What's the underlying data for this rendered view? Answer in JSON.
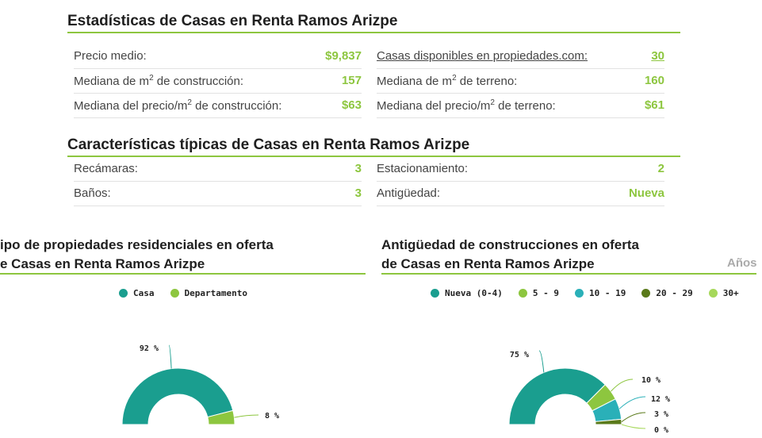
{
  "stats": {
    "title": "Estadísticas de Casas en Renta Ramos Arizpe",
    "left": [
      {
        "label_html": "Precio medio:",
        "value": "$9,837"
      },
      {
        "label_html": "Mediana de m<sup>2</sup> de construcción:",
        "value": "157"
      },
      {
        "label_html": "Mediana del precio/m<sup>2</sup> de construcción:",
        "value": "$63"
      }
    ],
    "right": [
      {
        "label_html": "Casas disponibles en propiedades.com:",
        "value": "30"
      },
      {
        "label_html": "Mediana de m<sup>2</sup> de terreno:",
        "value": "160"
      },
      {
        "label_html": "Mediana del precio/m<sup>2</sup> de terreno:",
        "value": "$61"
      }
    ]
  },
  "features": {
    "title": "Características típicas de Casas en Renta Ramos Arizpe",
    "left": [
      {
        "label": "Recámaras:",
        "value": "3"
      },
      {
        "label": "Baños:",
        "value": "3"
      }
    ],
    "right": [
      {
        "label": "Estacionamiento:",
        "value": "2"
      },
      {
        "label": "Antigüedad:",
        "value": "Nueva"
      }
    ]
  },
  "chart1": {
    "title_line1": "ipo de propiedades residenciales en oferta",
    "title_line2": "e Casas en Renta Ramos Arizpe"
  },
  "chart2": {
    "title_line1": "Antigüedad de construcciones en oferta",
    "title_line2": "de Casas en Renta Ramos Arizpe",
    "unit_label": "Años"
  },
  "chart_data": [
    {
      "type": "pie",
      "title": "ipo de propiedades residenciales en oferta e Casas en Renta Ramos Arizpe",
      "legend_position": "top",
      "series": [
        {
          "name": "Casa",
          "value": 92,
          "label": "92 %",
          "color": "#1a9e8f"
        },
        {
          "name": "Departamento",
          "value": 8,
          "label": "8 %",
          "color": "#8dc63f"
        }
      ]
    },
    {
      "type": "pie",
      "title": "Antigüedad de construcciones en oferta de Casas en Renta Ramos Arizpe",
      "legend_position": "top",
      "series": [
        {
          "name": "Nueva (0-4)",
          "value": 75,
          "label": "75 %",
          "color": "#1a9e8f"
        },
        {
          "name": "5 - 9",
          "value": 10,
          "label": "10 %",
          "color": "#8dc63f"
        },
        {
          "name": "10 - 19",
          "value": 12,
          "label": "12 %",
          "color": "#2ab0b8"
        },
        {
          "name": "20 - 29",
          "value": 3,
          "label": "3 %",
          "color": "#5a7a1a"
        },
        {
          "name": "30+",
          "value": 0,
          "label": "0 %",
          "color": "#a6d85a"
        }
      ]
    }
  ]
}
